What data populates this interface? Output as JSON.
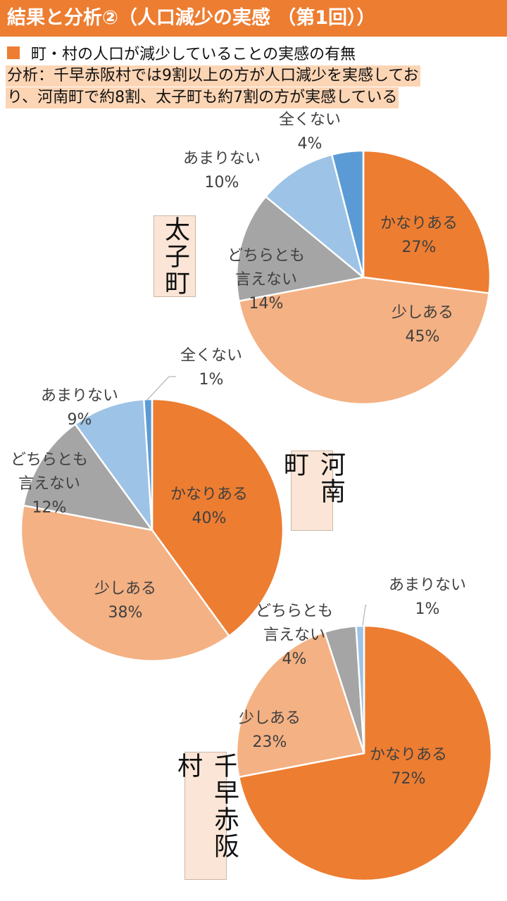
{
  "header": {
    "title": "結果と分析②（人口減少の実感 （第1回））"
  },
  "legend": {
    "label": "町・村の人口が減少していることの実感の有無"
  },
  "analysis": {
    "line1": "分析：千早赤阪村では9割以上の方が人口減少を実感してお",
    "line2": "り、河南町で約8割、太子町も約7割の方が実感している"
  },
  "colors": {
    "accent": "#ED7D31",
    "kanari": "#ED7D31",
    "sukoshi": "#F4B183",
    "dochira": "#A5A5A5",
    "amari": "#9DC3E6",
    "mattaku": "#5B9BD5",
    "label_bg": "#FBE5D6",
    "analysis_bg": "#FCD5B5"
  },
  "chart_data": [
    {
      "type": "pie",
      "name": "太子町",
      "categories": [
        "かなりある",
        "少しある",
        "どちらとも言えない",
        "あまりない",
        "全くない"
      ],
      "values": [
        27,
        45,
        14,
        10,
        4
      ],
      "labels": [
        [
          "かなりある",
          "27%"
        ],
        [
          "少しある",
          "45%"
        ],
        [
          "どちらとも",
          "言えない",
          "14%"
        ],
        [
          "あまりない",
          "10%"
        ],
        [
          "全くない",
          "4%"
        ]
      ]
    },
    {
      "type": "pie",
      "name": "河南町",
      "categories": [
        "かなりある",
        "少しある",
        "どちらとも言えない",
        "あまりない",
        "全くない"
      ],
      "values": [
        40,
        38,
        12,
        9,
        1
      ],
      "labels": [
        [
          "かなりある",
          "40%"
        ],
        [
          "少しある",
          "38%"
        ],
        [
          "どちらとも",
          "言えない",
          "12%"
        ],
        [
          "あまりない",
          "9%"
        ],
        [
          "全くない",
          "1%"
        ]
      ]
    },
    {
      "type": "pie",
      "name": "千早赤阪村",
      "categories": [
        "かなりある",
        "少しある",
        "どちらとも言えない",
        "あまりない"
      ],
      "values": [
        72,
        23,
        4,
        1
      ],
      "labels": [
        [
          "かなりある",
          "72%"
        ],
        [
          "少しある",
          "23%"
        ],
        [
          "どちらとも",
          "言えない",
          "4%"
        ],
        [
          "あまりない",
          "1%"
        ]
      ]
    }
  ]
}
